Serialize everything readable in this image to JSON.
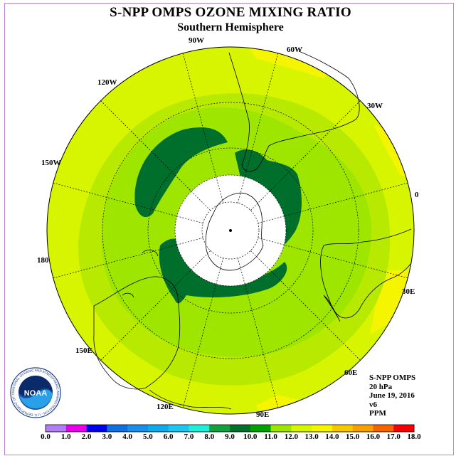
{
  "title": "S-NPP OMPS OZONE MIXING RATIO",
  "subtitle": "Southern Hemisphere",
  "logo": {
    "text": "NOAA",
    "ring_text": "NATIONAL OCEANIC AND ATMOSPHERIC ADMINISTRATION · U.S. DEPARTMENT OF COMMERCE"
  },
  "longitude_labels": [
    "90W",
    "60W",
    "30W",
    "0",
    "30E",
    "60E",
    "90E",
    "120E",
    "150E",
    "180",
    "150W",
    "120W"
  ],
  "info": {
    "instrument": "S-NPP OMPS",
    "level": "20 hPa",
    "date": "June 19, 2016",
    "version": "v6",
    "units": "PPM"
  },
  "colorbar": {
    "ticks": [
      "0.0",
      "1.0",
      "2.0",
      "3.0",
      "4.0",
      "5.0",
      "6.0",
      "7.0",
      "8.0",
      "9.0",
      "10.0",
      "11.0",
      "12.0",
      "13.0",
      "14.0",
      "15.0",
      "16.0",
      "17.0",
      "18.0"
    ],
    "colors": [
      "#b27ff2",
      "#dcb0f5",
      "#e800e8",
      "#0000e8",
      "#1070e0",
      "#1a8ee8",
      "#10aae8",
      "#20c4f0",
      "#20eed8",
      "#14a03c",
      "#006f2c",
      "#00a000",
      "#9ee600",
      "#d8f500",
      "#f5f500",
      "#f5c800",
      "#f5a000",
      "#f56400",
      "#f50000",
      "#8b5a2b"
    ]
  },
  "map_colors": {
    "band_11_12": "#b7ea00",
    "band_12_13": "#d8f500",
    "band_13_14": "#f5f500",
    "band_10_11": "#9ee600",
    "band_9_10": "#14a03c",
    "band_8_9": "#006f2c",
    "missing": "#ffffff"
  }
}
